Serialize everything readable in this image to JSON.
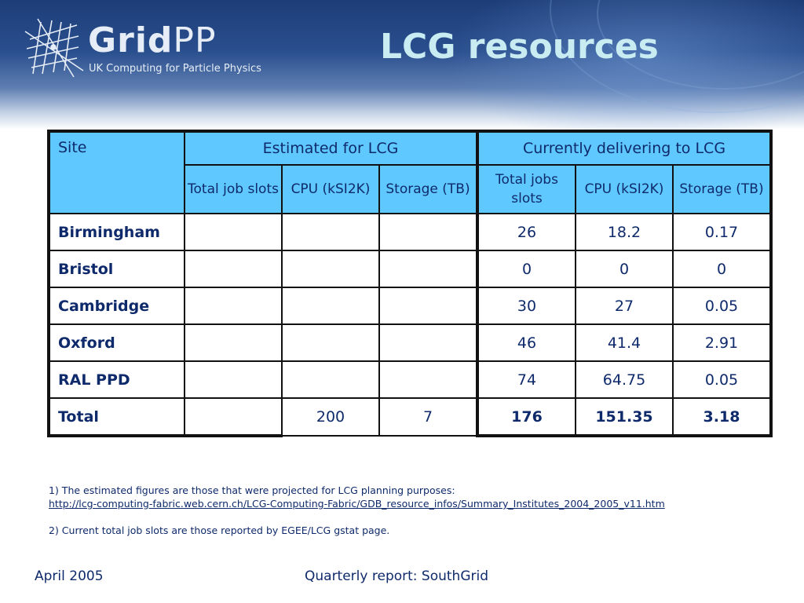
{
  "header": {
    "logo_word_bold": "Grid",
    "logo_word_light": "PP",
    "logo_tagline": "UK Computing for Particle Physics",
    "title": "LCG resources"
  },
  "table": {
    "site_header": "Site",
    "group_estimated": "Estimated for LCG",
    "group_current": "Currently delivering to LCG",
    "sub_estimated": [
      "Total job slots",
      "CPU (kSI2K)",
      "Storage (TB)"
    ],
    "sub_current": [
      "Total jobs slots",
      "CPU (kSI2K)",
      "Storage (TB)"
    ],
    "rows": [
      {
        "site": "Birmingham",
        "est": [
          "",
          "",
          ""
        ],
        "cur": [
          "26",
          "18.2",
          "0.17"
        ]
      },
      {
        "site": "Bristol",
        "est": [
          "",
          "",
          ""
        ],
        "cur": [
          "0",
          "0",
          "0"
        ]
      },
      {
        "site": "Cambridge",
        "est": [
          "",
          "",
          ""
        ],
        "cur": [
          "30",
          "27",
          "0.05"
        ]
      },
      {
        "site": "Oxford",
        "est": [
          "",
          "",
          ""
        ],
        "cur": [
          "46",
          "41.4",
          "2.91"
        ]
      },
      {
        "site": "RAL PPD",
        "est": [
          "",
          "",
          ""
        ],
        "cur": [
          "74",
          "64.75",
          "0.05"
        ]
      },
      {
        "site": "Total",
        "est": [
          "",
          "200",
          "7"
        ],
        "cur": [
          "176",
          "151.35",
          "3.18"
        ]
      }
    ]
  },
  "notes": {
    "note1": "1) The estimated figures are those that were projected for LCG planning purposes:",
    "link": "http://lcg-computing-fabric.web.cern.ch/LCG-Computing-Fabric/GDB_resource_infos/Summary_Institutes_2004_2005_v11.htm",
    "note2": "2) Current total job slots are those reported by EGEE/LCG gstat page."
  },
  "footer": {
    "date": "April 2005",
    "center": "Quarterly report: SouthGrid"
  },
  "colors": {
    "header_blue": "#1d3d78",
    "title_text": "#c8ecf2",
    "table_header_bg": "#5fc8ff",
    "body_text": "#0f2a6b"
  }
}
